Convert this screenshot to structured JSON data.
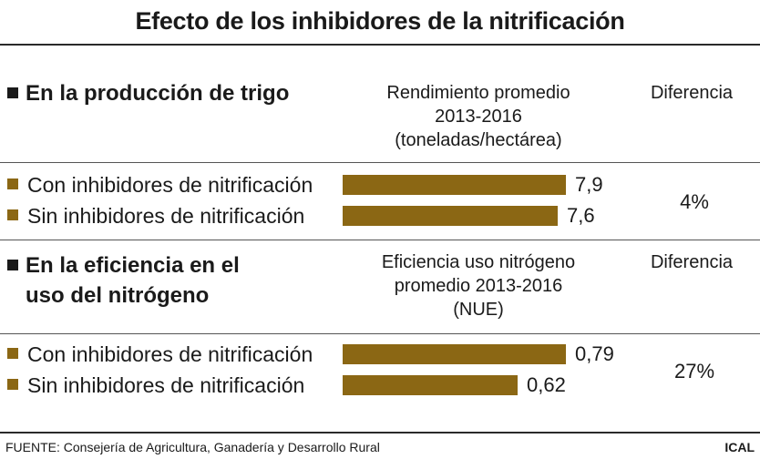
{
  "title": "Efecto de los inhibidores de la nitrificación",
  "colors": {
    "bar": "#8b6714",
    "bullet": "#8b6714"
  },
  "chart_data": [
    {
      "type": "bar",
      "section_title": "En la producción de trigo",
      "value_header": [
        "Rendimiento promedio",
        "2013-2016",
        "(toneladas/hectárea)"
      ],
      "diff_header": "Diferencia",
      "categories": [
        "Con inhibidores de nitrificación",
        "Sin inhibidores de nitrificación"
      ],
      "values": [
        7.9,
        7.6
      ],
      "value_labels": [
        "7,9",
        "7,6"
      ],
      "difference": "4%",
      "xlim": [
        0,
        7.9
      ]
    },
    {
      "type": "bar",
      "section_title": [
        "En la eficiencia en el",
        "uso del nitrógeno"
      ],
      "value_header": [
        "Eficiencia uso nitrógeno",
        "promedio 2013-2016",
        "(NUE)"
      ],
      "diff_header": "Diferencia",
      "categories": [
        "Con inhibidores de nitrificación",
        "Sin inhibidores de nitrificación"
      ],
      "values": [
        0.79,
        0.62
      ],
      "value_labels": [
        "0,79",
        "0,62"
      ],
      "difference": "27%",
      "xlim": [
        0,
        0.79
      ]
    }
  ],
  "footer": {
    "source": "FUENTE: Consejería de Agricultura, Ganadería y Desarrollo Rural",
    "brand": "ICAL"
  }
}
